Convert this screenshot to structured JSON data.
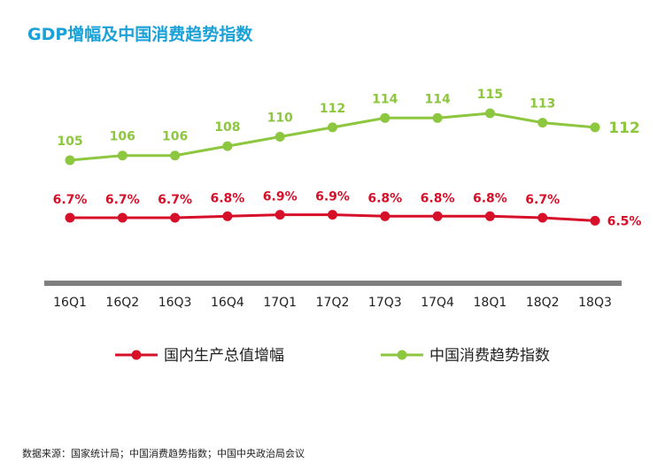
{
  "chart_data": {
    "type": "line",
    "title": "GDP增幅及中国消费趋势指数",
    "categories": [
      "16Q1",
      "16Q2",
      "16Q3",
      "16Q4",
      "17Q1",
      "17Q2",
      "17Q3",
      "17Q4",
      "18Q1",
      "18Q2",
      "18Q3"
    ],
    "series": [
      {
        "name": "国内生产总值增幅",
        "color": "#d7102a",
        "values": [
          6.7,
          6.7,
          6.7,
          6.8,
          6.9,
          6.9,
          6.8,
          6.8,
          6.8,
          6.7,
          6.5
        ],
        "labels": [
          "6.7%",
          "6.7%",
          "6.7%",
          "6.8%",
          "6.9%",
          "6.9%",
          "6.8%",
          "6.8%",
          "6.8%",
          "6.7%",
          "6.5%"
        ]
      },
      {
        "name": "中国消费趋势指数",
        "color": "#8dc63f",
        "values": [
          105,
          106,
          106,
          108,
          110,
          112,
          114,
          114,
          115,
          113,
          112
        ],
        "labels": [
          "105",
          "106",
          "106",
          "108",
          "110",
          "112",
          "114",
          "114",
          "115",
          "113",
          "112"
        ]
      }
    ],
    "legend": "bottom",
    "grid": false
  },
  "source": "数据来源：国家统计局；中国消费趋势指数；中国中央政治局会议"
}
